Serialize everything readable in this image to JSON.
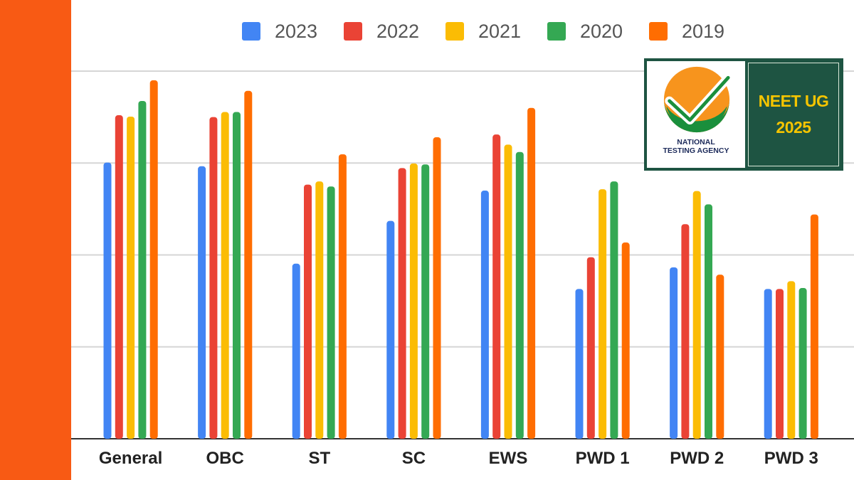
{
  "chart_data": {
    "type": "bar",
    "title": "",
    "xlabel": "",
    "ylabel": "",
    "ylim": [
      0,
      800
    ],
    "gridlines": [
      0,
      200,
      400,
      600,
      800
    ],
    "legend_position": "top",
    "categories": [
      "General",
      "OBC",
      "ST",
      "SC",
      "EWS",
      "PWD 1",
      "PWD 2",
      "PWD 3"
    ],
    "series": [
      {
        "name": "2023",
        "color": "#4285f4",
        "values": [
          601,
          593,
          381,
          474,
          540,
          326,
          373,
          326
        ]
      },
      {
        "name": "2022",
        "color": "#ea4335",
        "values": [
          704,
          700,
          553,
          589,
          662,
          395,
          467,
          326
        ]
      },
      {
        "name": "2021",
        "color": "#fbbc04",
        "values": [
          701,
          711,
          560,
          599,
          640,
          543,
          539,
          343
        ]
      },
      {
        "name": "2020",
        "color": "#34a853",
        "values": [
          735,
          711,
          549,
          597,
          624,
          560,
          510,
          328
        ]
      },
      {
        "name": "2019",
        "color": "#ff6d01",
        "values": [
          780,
          757,
          619,
          656,
          720,
          427,
          357,
          488
        ]
      }
    ]
  },
  "badge": {
    "agency_line1": "NATIONAL",
    "agency_line2": "TESTING AGENCY",
    "title_line1": "NEET UG",
    "title_line2": "2025"
  },
  "colors": {
    "band": "#f85a14",
    "badge_green": "#1e5442",
    "badge_text": "#f5c400"
  }
}
